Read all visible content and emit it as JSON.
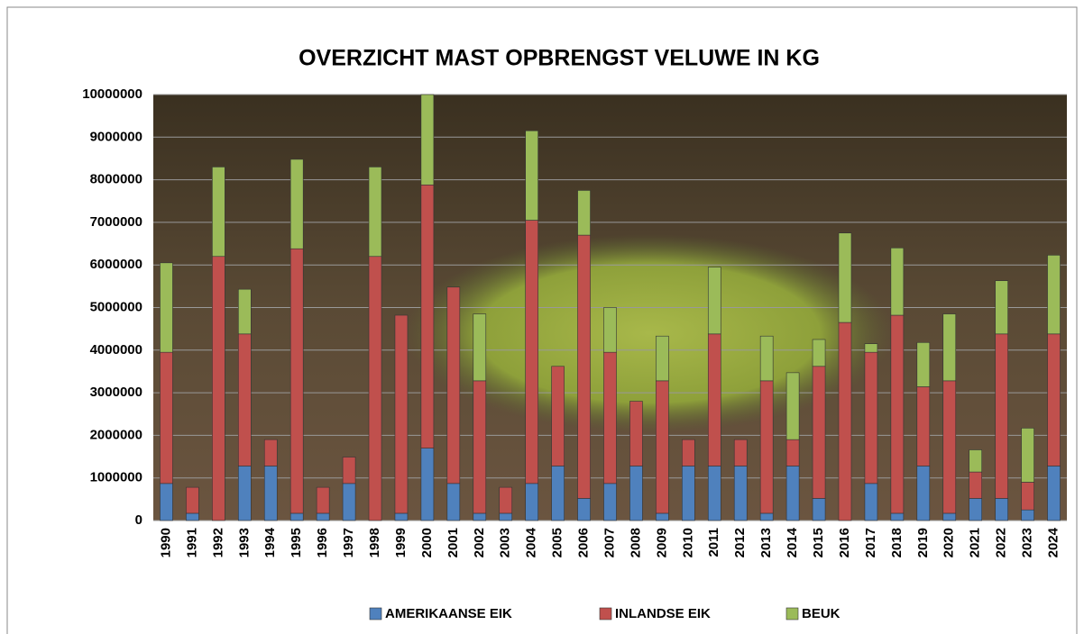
{
  "chart_data": {
    "type": "stacked-bar",
    "title": "OVERZICHT MAST OPBRENGST VELUWE IN KG",
    "categories": [
      "1990",
      "1991",
      "1992",
      "1993",
      "1994",
      "1995",
      "1996",
      "1997",
      "1998",
      "1999",
      "2000",
      "2001",
      "2002",
      "2003",
      "2004",
      "2005",
      "2006",
      "2007",
      "2008",
      "2009",
      "2010",
      "2011",
      "2012",
      "2013",
      "2014",
      "2015",
      "2016",
      "2017",
      "2018",
      "2019",
      "2020",
      "2021",
      "2022",
      "2023",
      "2024"
    ],
    "series": [
      {
        "name": "AMERIKAANSE EIK",
        "color": "#4f81bd",
        "values": [
          870000,
          170000,
          0,
          1280000,
          1280000,
          170000,
          170000,
          870000,
          0,
          170000,
          1700000,
          870000,
          170000,
          170000,
          870000,
          1280000,
          520000,
          870000,
          1280000,
          170000,
          1280000,
          1280000,
          1280000,
          170000,
          1280000,
          520000,
          0,
          870000,
          170000,
          1280000,
          170000,
          520000,
          520000,
          250000,
          1280000
        ]
      },
      {
        "name": "INLANDSE EIK",
        "color": "#c0504d",
        "values": [
          3080000,
          610000,
          6200000,
          3100000,
          620000,
          6210000,
          610000,
          620000,
          6200000,
          4650000,
          6180000,
          4610000,
          3110000,
          610000,
          6180000,
          2340000,
          6180000,
          3080000,
          1520000,
          3110000,
          620000,
          3100000,
          620000,
          3110000,
          620000,
          3100000,
          4650000,
          3080000,
          4650000,
          1860000,
          3110000,
          620000,
          3860000,
          650000,
          3100000
        ]
      },
      {
        "name": "BEUK",
        "color": "#9bbb59",
        "values": [
          2100000,
          0,
          2100000,
          1050000,
          0,
          2100000,
          0,
          0,
          2100000,
          0,
          2120000,
          0,
          1570000,
          0,
          2100000,
          0,
          1050000,
          1050000,
          0,
          1050000,
          0,
          1570000,
          0,
          1050000,
          1570000,
          630000,
          2100000,
          200000,
          1580000,
          1040000,
          1570000,
          520000,
          1250000,
          1270000,
          1850000
        ]
      }
    ],
    "ylim": [
      0,
      10000000
    ],
    "yticks": [
      0,
      1000000,
      2000000,
      3000000,
      4000000,
      5000000,
      6000000,
      7000000,
      8000000,
      9000000,
      10000000
    ],
    "grid": true
  }
}
